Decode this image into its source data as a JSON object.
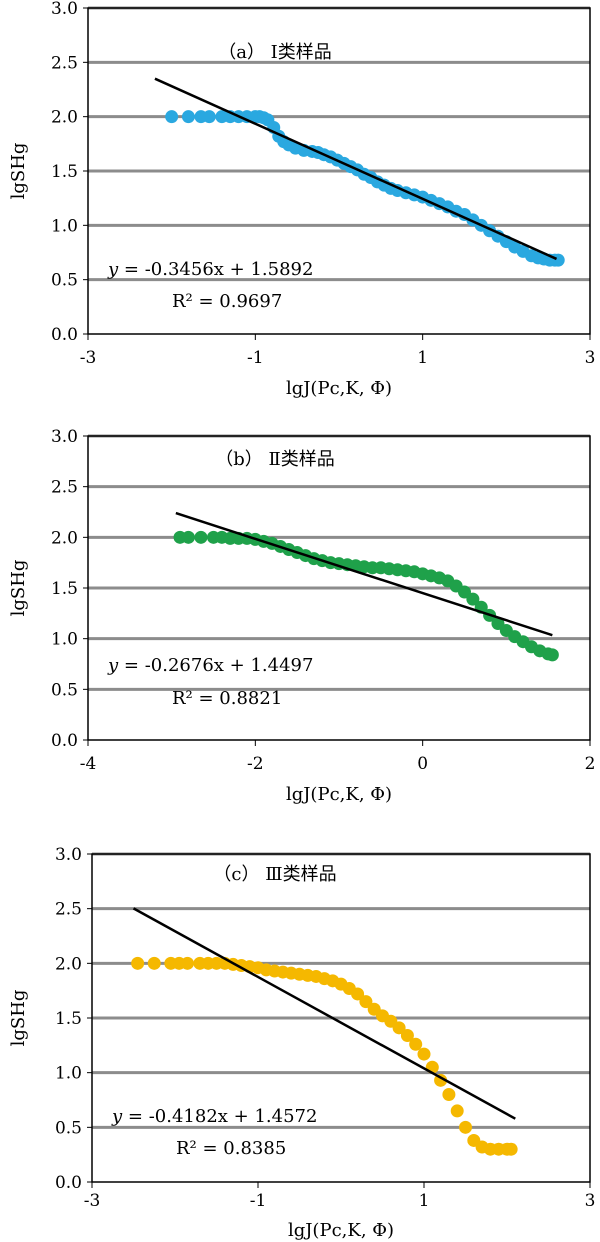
{
  "chart_data": [
    {
      "type": "scatter",
      "title": "（a） Ⅰ类样品",
      "xlabel": "lgJ(Pc,K, Φ)",
      "ylabel": "lgSHg",
      "xlim": [
        -3,
        3
      ],
      "ylim": [
        0,
        3
      ],
      "x_ticks": [
        "-3",
        "-1",
        "1",
        "3"
      ],
      "y_ticks": [
        "0.0",
        "0.5",
        "1.0",
        "1.5",
        "2.0",
        "2.5",
        "3.0"
      ],
      "grid": "horizontal",
      "marker_color": "#2AA8E0",
      "equation": {
        "y_label": "y =",
        "text": "-0.3456x + 1.5892"
      },
      "r2": "R² = 0.9697",
      "fit": {
        "slope": -0.3456,
        "intercept": 1.5892,
        "x_range": [
          -2.2,
          2.6
        ]
      },
      "points": [
        [
          -2.0,
          2.0
        ],
        [
          -1.8,
          2.0
        ],
        [
          -1.65,
          2.0
        ],
        [
          -1.55,
          2.0
        ],
        [
          -1.4,
          2.0
        ],
        [
          -1.3,
          2.0
        ],
        [
          -1.2,
          2.0
        ],
        [
          -1.1,
          2.0
        ],
        [
          -1.0,
          2.0
        ],
        [
          -0.95,
          2.0
        ],
        [
          -0.9,
          1.99
        ],
        [
          -0.85,
          1.97
        ],
        [
          -0.78,
          1.9
        ],
        [
          -0.72,
          1.82
        ],
        [
          -0.66,
          1.77
        ],
        [
          -0.6,
          1.74
        ],
        [
          -0.52,
          1.71
        ],
        [
          -0.42,
          1.69
        ],
        [
          -0.32,
          1.68
        ],
        [
          -0.25,
          1.67
        ],
        [
          -0.18,
          1.65
        ],
        [
          -0.1,
          1.63
        ],
        [
          -0.02,
          1.6
        ],
        [
          0.06,
          1.57
        ],
        [
          0.14,
          1.54
        ],
        [
          0.22,
          1.51
        ],
        [
          0.3,
          1.47
        ],
        [
          0.38,
          1.44
        ],
        [
          0.46,
          1.4
        ],
        [
          0.54,
          1.37
        ],
        [
          0.62,
          1.34
        ],
        [
          0.7,
          1.32
        ],
        [
          0.8,
          1.3
        ],
        [
          0.9,
          1.28
        ],
        [
          1.0,
          1.26
        ],
        [
          1.1,
          1.23
        ],
        [
          1.2,
          1.2
        ],
        [
          1.3,
          1.17
        ],
        [
          1.4,
          1.13
        ],
        [
          1.5,
          1.1
        ],
        [
          1.6,
          1.05
        ],
        [
          1.7,
          1.0
        ],
        [
          1.8,
          0.95
        ],
        [
          1.9,
          0.9
        ],
        [
          2.0,
          0.85
        ],
        [
          2.1,
          0.8
        ],
        [
          2.2,
          0.76
        ],
        [
          2.3,
          0.72
        ],
        [
          2.38,
          0.7
        ],
        [
          2.45,
          0.69
        ],
        [
          2.52,
          0.68
        ],
        [
          2.58,
          0.68
        ],
        [
          2.62,
          0.68
        ]
      ]
    },
    {
      "type": "scatter",
      "title": "（b） Ⅱ类样品",
      "xlabel": "lgJ(Pc,K, Φ)",
      "ylabel": "lgSHg",
      "xlim": [
        -4,
        2
      ],
      "ylim": [
        0,
        3
      ],
      "x_ticks": [
        "-4",
        "-2",
        "0",
        "2"
      ],
      "y_ticks": [
        "0.0",
        "0.5",
        "1.0",
        "1.5",
        "2.0",
        "2.5",
        "3.0"
      ],
      "grid": "horizontal",
      "marker_color": "#1FA14A",
      "equation": {
        "y_label": "y =",
        "text": "-0.2676x + 1.4497"
      },
      "r2": "R² = 0.8821",
      "fit": {
        "slope": -0.2676,
        "intercept": 1.4497,
        "x_range": [
          -2.95,
          1.55
        ]
      },
      "points": [
        [
          -2.9,
          2.0
        ],
        [
          -2.8,
          2.0
        ],
        [
          -2.65,
          2.0
        ],
        [
          -2.5,
          2.0
        ],
        [
          -2.4,
          2.0
        ],
        [
          -2.3,
          1.99
        ],
        [
          -2.2,
          1.99
        ],
        [
          -2.1,
          1.99
        ],
        [
          -2.0,
          1.98
        ],
        [
          -1.9,
          1.96
        ],
        [
          -1.8,
          1.94
        ],
        [
          -1.7,
          1.91
        ],
        [
          -1.6,
          1.88
        ],
        [
          -1.5,
          1.85
        ],
        [
          -1.4,
          1.82
        ],
        [
          -1.3,
          1.79
        ],
        [
          -1.2,
          1.77
        ],
        [
          -1.1,
          1.75
        ],
        [
          -1.0,
          1.74
        ],
        [
          -0.9,
          1.73
        ],
        [
          -0.8,
          1.72
        ],
        [
          -0.7,
          1.71
        ],
        [
          -0.6,
          1.7
        ],
        [
          -0.5,
          1.7
        ],
        [
          -0.4,
          1.69
        ],
        [
          -0.3,
          1.68
        ],
        [
          -0.2,
          1.67
        ],
        [
          -0.1,
          1.66
        ],
        [
          0.0,
          1.64
        ],
        [
          0.1,
          1.62
        ],
        [
          0.2,
          1.6
        ],
        [
          0.3,
          1.57
        ],
        [
          0.4,
          1.52
        ],
        [
          0.5,
          1.46
        ],
        [
          0.6,
          1.39
        ],
        [
          0.7,
          1.31
        ],
        [
          0.8,
          1.23
        ],
        [
          0.9,
          1.15
        ],
        [
          1.0,
          1.08
        ],
        [
          1.1,
          1.02
        ],
        [
          1.2,
          0.97
        ],
        [
          1.3,
          0.92
        ],
        [
          1.4,
          0.88
        ],
        [
          1.5,
          0.85
        ],
        [
          1.55,
          0.84
        ]
      ]
    },
    {
      "type": "scatter",
      "title": "（c） Ⅲ类样品",
      "xlabel": "lgJ(Pc,K, Φ)",
      "ylabel": "lgSHg",
      "xlim": [
        -3,
        3
      ],
      "ylim": [
        0,
        3
      ],
      "x_ticks": [
        "-3",
        "-1",
        "1",
        "3"
      ],
      "y_ticks": [
        "0.0",
        "0.5",
        "1.0",
        "1.5",
        "2.0",
        "2.5",
        "3.0"
      ],
      "grid": "horizontal",
      "marker_color": "#F5B800",
      "equation": {
        "y_label": "y =",
        "text": "-0.4182x + 1.4572"
      },
      "r2": "R² = 0.8385",
      "fit": {
        "slope": -0.4182,
        "intercept": 1.4572,
        "x_range": [
          -2.5,
          2.1
        ]
      },
      "points": [
        [
          -2.45,
          2.0
        ],
        [
          -2.25,
          2.0
        ],
        [
          -2.05,
          2.0
        ],
        [
          -1.95,
          2.0
        ],
        [
          -1.85,
          2.0
        ],
        [
          -1.7,
          2.0
        ],
        [
          -1.6,
          2.0
        ],
        [
          -1.5,
          2.0
        ],
        [
          -1.4,
          2.0
        ],
        [
          -1.3,
          1.99
        ],
        [
          -1.2,
          1.98
        ],
        [
          -1.1,
          1.97
        ],
        [
          -1.0,
          1.96
        ],
        [
          -0.9,
          1.94
        ],
        [
          -0.8,
          1.93
        ],
        [
          -0.7,
          1.92
        ],
        [
          -0.6,
          1.91
        ],
        [
          -0.5,
          1.9
        ],
        [
          -0.4,
          1.89
        ],
        [
          -0.3,
          1.88
        ],
        [
          -0.2,
          1.86
        ],
        [
          -0.1,
          1.84
        ],
        [
          0.0,
          1.81
        ],
        [
          0.1,
          1.77
        ],
        [
          0.2,
          1.72
        ],
        [
          0.3,
          1.65
        ],
        [
          0.4,
          1.58
        ],
        [
          0.5,
          1.52
        ],
        [
          0.6,
          1.47
        ],
        [
          0.7,
          1.41
        ],
        [
          0.8,
          1.34
        ],
        [
          0.9,
          1.26
        ],
        [
          1.0,
          1.17
        ],
        [
          1.1,
          1.05
        ],
        [
          1.2,
          0.93
        ],
        [
          1.3,
          0.8
        ],
        [
          1.4,
          0.65
        ],
        [
          1.5,
          0.5
        ],
        [
          1.6,
          0.38
        ],
        [
          1.7,
          0.32
        ],
        [
          1.8,
          0.3
        ],
        [
          1.9,
          0.3
        ],
        [
          2.0,
          0.3
        ],
        [
          2.05,
          0.3
        ]
      ]
    }
  ]
}
